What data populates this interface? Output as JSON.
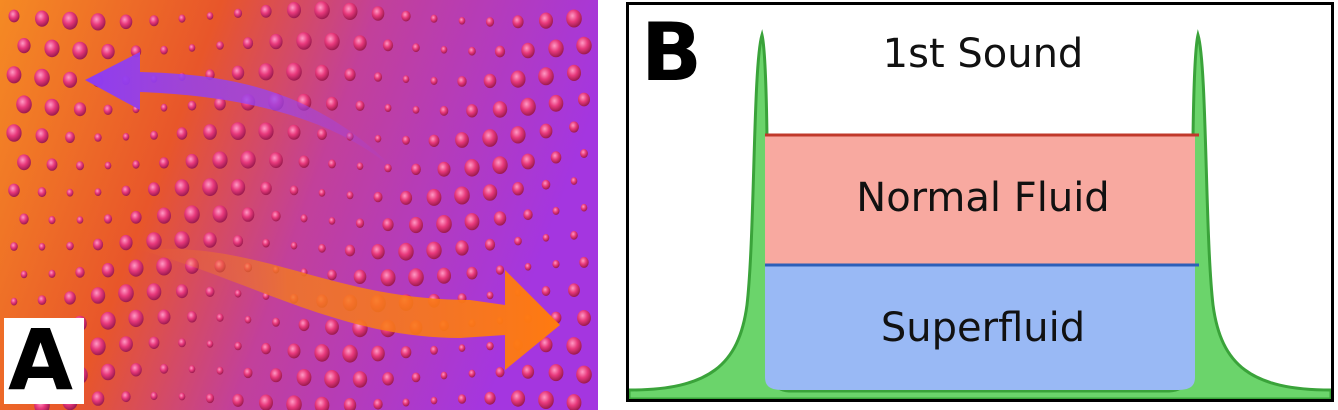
{
  "panel_a": {
    "letter": "A",
    "colors": {
      "warm": "#f47a1d",
      "cool": "#b23bd6",
      "dot": "#e83a7e",
      "arrow_orange": "#f07018",
      "arrow_purple": "#9a45ee"
    },
    "icons": [
      "arrow-left-icon",
      "arrow-right-icon"
    ]
  },
  "panel_b": {
    "letter": "B",
    "regions": {
      "first_sound": "1st Sound",
      "normal_fluid": "Normal Fluid",
      "superfluid": "Superfluid"
    },
    "colors": {
      "green": "#6bd46b",
      "green_edge": "#3aa33a",
      "red": "#f8a9a0",
      "red_line": "#c0392b",
      "blue": "#99b9f5",
      "blue_line": "#2d5fb8"
    }
  }
}
